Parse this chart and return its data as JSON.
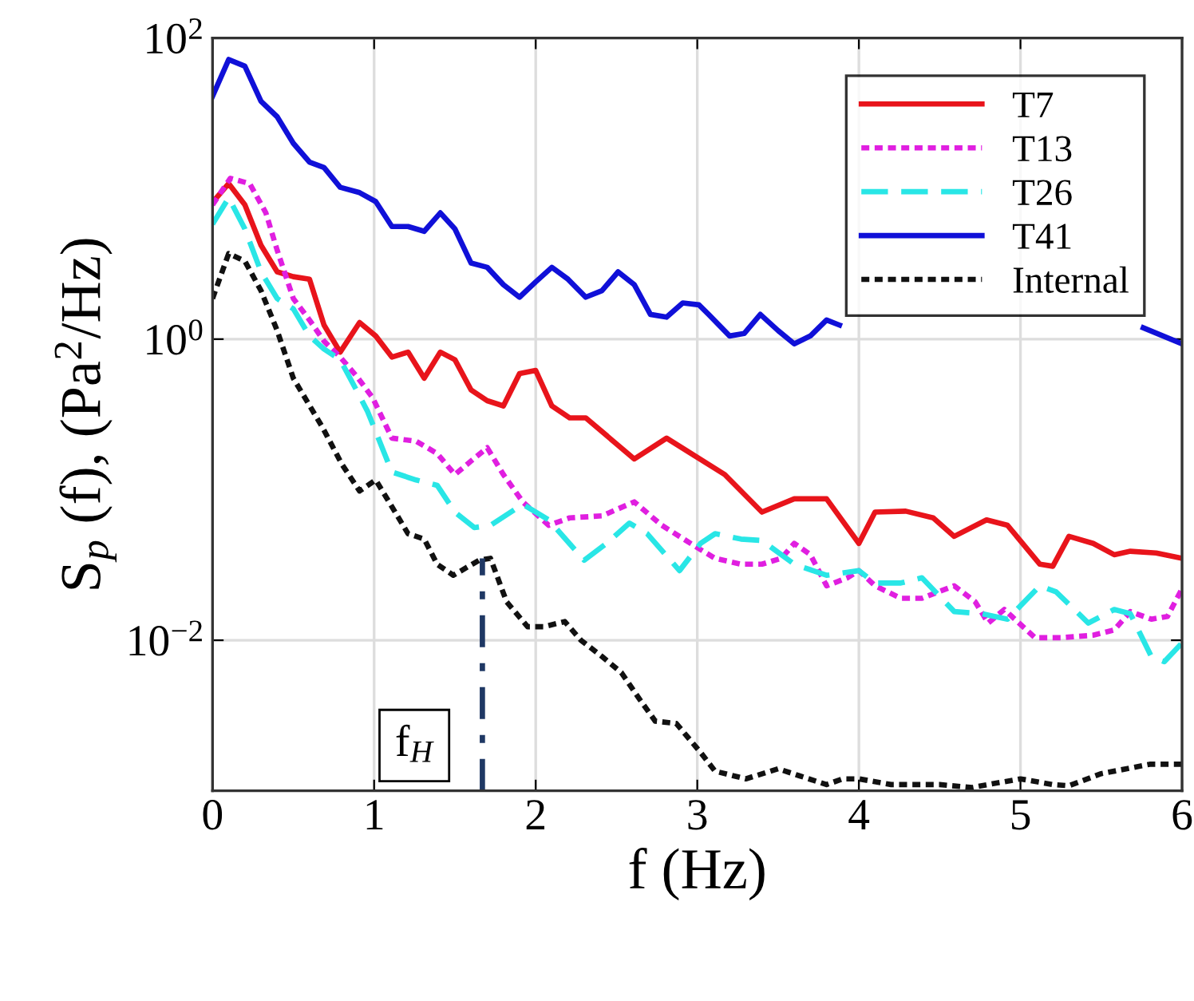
{
  "chart_data": {
    "type": "line",
    "xlabel": "f (Hz)",
    "ylabel": "S$_{p}$ (f), (Pa$^{2}$/Hz)",
    "log": "y",
    "grid": true,
    "legend": "top right",
    "xlim": [
      0,
      6
    ],
    "xticks": [
      0,
      1,
      2,
      3,
      4,
      5,
      6
    ],
    "ylim": [
      0.001,
      100
    ],
    "yticks": [
      {
        "value": 0.01,
        "label": "10$^{−2}$"
      },
      {
        "value": 1,
        "label": "10$^{0}$"
      },
      {
        "value": 100,
        "label": "10$^{2}$"
      }
    ],
    "annotations": [
      {
        "text": "f$_{H}$",
        "x": 1.67,
        "y": 0.002
      }
    ],
    "series": [
      {
        "name": "T7",
        "color": "#e8141b",
        "line_style": "solid",
        "x": [
          0.0,
          0.1,
          0.2,
          0.3,
          0.4,
          0.5,
          0.6,
          0.69,
          0.79,
          0.91,
          1.01,
          1.11,
          1.21,
          1.31,
          1.41,
          1.5,
          1.6,
          1.7,
          1.8,
          1.9,
          2.0,
          2.1,
          2.21,
          2.31,
          2.48,
          2.61,
          2.81,
          2.94,
          3.17,
          3.4,
          3.6,
          3.8,
          4.0,
          4.1,
          4.29,
          4.46,
          4.59,
          4.79,
          4.92,
          5.12,
          5.2,
          5.3,
          5.45,
          5.58,
          5.68,
          5.84,
          6.0
        ],
        "values": [
          8.1,
          10.8,
          7.8,
          4.2,
          2.8,
          2.6,
          2.5,
          1.24,
          0.82,
          1.29,
          1.05,
          0.76,
          0.82,
          0.55,
          0.82,
          0.73,
          0.46,
          0.39,
          0.36,
          0.59,
          0.62,
          0.36,
          0.3,
          0.3,
          0.21,
          0.16,
          0.22,
          0.18,
          0.126,
          0.071,
          0.087,
          0.087,
          0.044,
          0.071,
          0.072,
          0.065,
          0.049,
          0.063,
          0.058,
          0.032,
          0.031,
          0.049,
          0.044,
          0.037,
          0.039,
          0.038,
          0.035
        ]
      },
      {
        "name": "T13",
        "color": "#e01fe0",
        "line_style": "dotted",
        "x": [
          0.0,
          0.11,
          0.23,
          0.33,
          0.4,
          0.5,
          0.6,
          0.69,
          0.79,
          0.89,
          0.99,
          1.11,
          1.26,
          1.39,
          1.5,
          1.6,
          1.7,
          1.8,
          1.92,
          2.08,
          2.21,
          2.41,
          2.61,
          2.78,
          3.02,
          3.11,
          3.27,
          3.4,
          3.52,
          3.6,
          3.7,
          3.8,
          3.93,
          4.0,
          4.1,
          4.26,
          4.39,
          4.59,
          4.72,
          4.8,
          4.9,
          5.09,
          5.25,
          5.45,
          5.58,
          5.68,
          5.81,
          5.91,
          6.0
        ],
        "values": [
          7.8,
          11.7,
          10.8,
          6.9,
          3.9,
          1.86,
          1.34,
          0.97,
          0.76,
          0.57,
          0.41,
          0.22,
          0.21,
          0.174,
          0.126,
          0.155,
          0.19,
          0.126,
          0.083,
          0.058,
          0.065,
          0.067,
          0.083,
          0.058,
          0.04,
          0.035,
          0.032,
          0.032,
          0.035,
          0.044,
          0.037,
          0.023,
          0.026,
          0.029,
          0.023,
          0.019,
          0.019,
          0.023,
          0.018,
          0.013,
          0.016,
          0.0104,
          0.0104,
          0.0108,
          0.0117,
          0.0155,
          0.0138,
          0.0144,
          0.022
        ]
      },
      {
        "name": "T26",
        "color": "#29e6e6",
        "line_style": "dashed",
        "x": [
          0.0,
          0.1,
          0.2,
          0.3,
          0.4,
          0.5,
          0.6,
          0.69,
          0.79,
          0.89,
          0.96,
          1.11,
          1.26,
          1.39,
          1.5,
          1.62,
          1.72,
          1.92,
          2.08,
          2.3,
          2.45,
          2.58,
          2.69,
          2.89,
          3.02,
          3.11,
          3.27,
          3.4,
          3.6,
          3.8,
          4.0,
          4.1,
          4.26,
          4.39,
          4.59,
          4.76,
          4.92,
          5.12,
          5.22,
          5.42,
          5.58,
          5.68,
          5.81,
          5.89,
          6.0
        ],
        "values": [
          5.8,
          8.7,
          5.4,
          2.8,
          1.86,
          1.59,
          1.05,
          0.86,
          0.73,
          0.46,
          0.33,
          0.131,
          0.116,
          0.107,
          0.071,
          0.056,
          0.058,
          0.08,
          0.063,
          0.034,
          0.045,
          0.06,
          0.051,
          0.029,
          0.044,
          0.051,
          0.047,
          0.046,
          0.032,
          0.027,
          0.029,
          0.024,
          0.024,
          0.026,
          0.0155,
          0.015,
          0.0138,
          0.023,
          0.021,
          0.013,
          0.016,
          0.015,
          0.0078,
          0.0072,
          0.0096
        ]
      },
      {
        "name": "T41",
        "color": "#1010d8",
        "line_style": "solid",
        "x": [
          0.0,
          0.1,
          0.2,
          0.3,
          0.4,
          0.5,
          0.6,
          0.69,
          0.79,
          0.91,
          1.01,
          1.11,
          1.21,
          1.31,
          1.41,
          1.5,
          1.6,
          1.7,
          1.8,
          1.9,
          2.0,
          2.1,
          2.2,
          2.31,
          2.41,
          2.51,
          2.61,
          2.71,
          2.81,
          2.91,
          3.01,
          3.07,
          3.2,
          3.29,
          3.39,
          3.5,
          3.6,
          3.7,
          3.8,
          3.88,
          4.8,
          5.76,
          6.0
        ],
        "values": [
          41,
          72,
          65,
          38,
          30,
          20,
          15,
          13.8,
          10.2,
          9.4,
          8.2,
          5.6,
          5.6,
          5.2,
          6.9,
          5.4,
          3.2,
          3.0,
          2.3,
          1.9,
          2.4,
          3.0,
          2.5,
          1.9,
          2.1,
          2.8,
          2.3,
          1.46,
          1.4,
          1.74,
          1.69,
          1.46,
          1.05,
          1.09,
          1.46,
          1.14,
          0.93,
          1.05,
          1.34,
          1.24,
          null,
          1.19,
          0.93
        ]
      },
      {
        "name": "Internal",
        "color": "#111111",
        "line_style": "dotted",
        "x": [
          0.0,
          0.1,
          0.2,
          0.3,
          0.4,
          0.5,
          0.68,
          0.8,
          0.91,
          1.01,
          1.13,
          1.21,
          1.31,
          1.39,
          1.49,
          1.65,
          1.72,
          1.82,
          1.95,
          2.05,
          2.18,
          2.28,
          2.41,
          2.53,
          2.64,
          2.74,
          2.87,
          3.02,
          3.11,
          3.3,
          3.5,
          3.63,
          3.8,
          3.9,
          4.0,
          4.2,
          4.5,
          4.7,
          4.8,
          5.0,
          5.2,
          5.3,
          5.5,
          5.8,
          6.0
        ],
        "values": [
          1.86,
          3.7,
          3.3,
          2.1,
          1.14,
          0.55,
          0.26,
          0.148,
          0.098,
          0.116,
          0.071,
          0.051,
          0.047,
          0.032,
          0.027,
          0.034,
          0.035,
          0.018,
          0.0123,
          0.0123,
          0.0133,
          0.01,
          0.0078,
          0.0061,
          0.0041,
          0.0029,
          0.0028,
          0.0018,
          0.00135,
          0.0012,
          0.0014,
          0.00126,
          0.0011,
          0.0012,
          0.0012,
          0.0011,
          0.0011,
          0.00105,
          0.0011,
          0.0012,
          0.0011,
          0.00108,
          0.0013,
          0.0015,
          0.0015
        ]
      },
      {
        "color": "#1f3864",
        "line_style": "dashdot",
        "x": [
          1.67,
          1.67
        ],
        "values": [
          0.001,
          0.035
        ]
      }
    ]
  }
}
